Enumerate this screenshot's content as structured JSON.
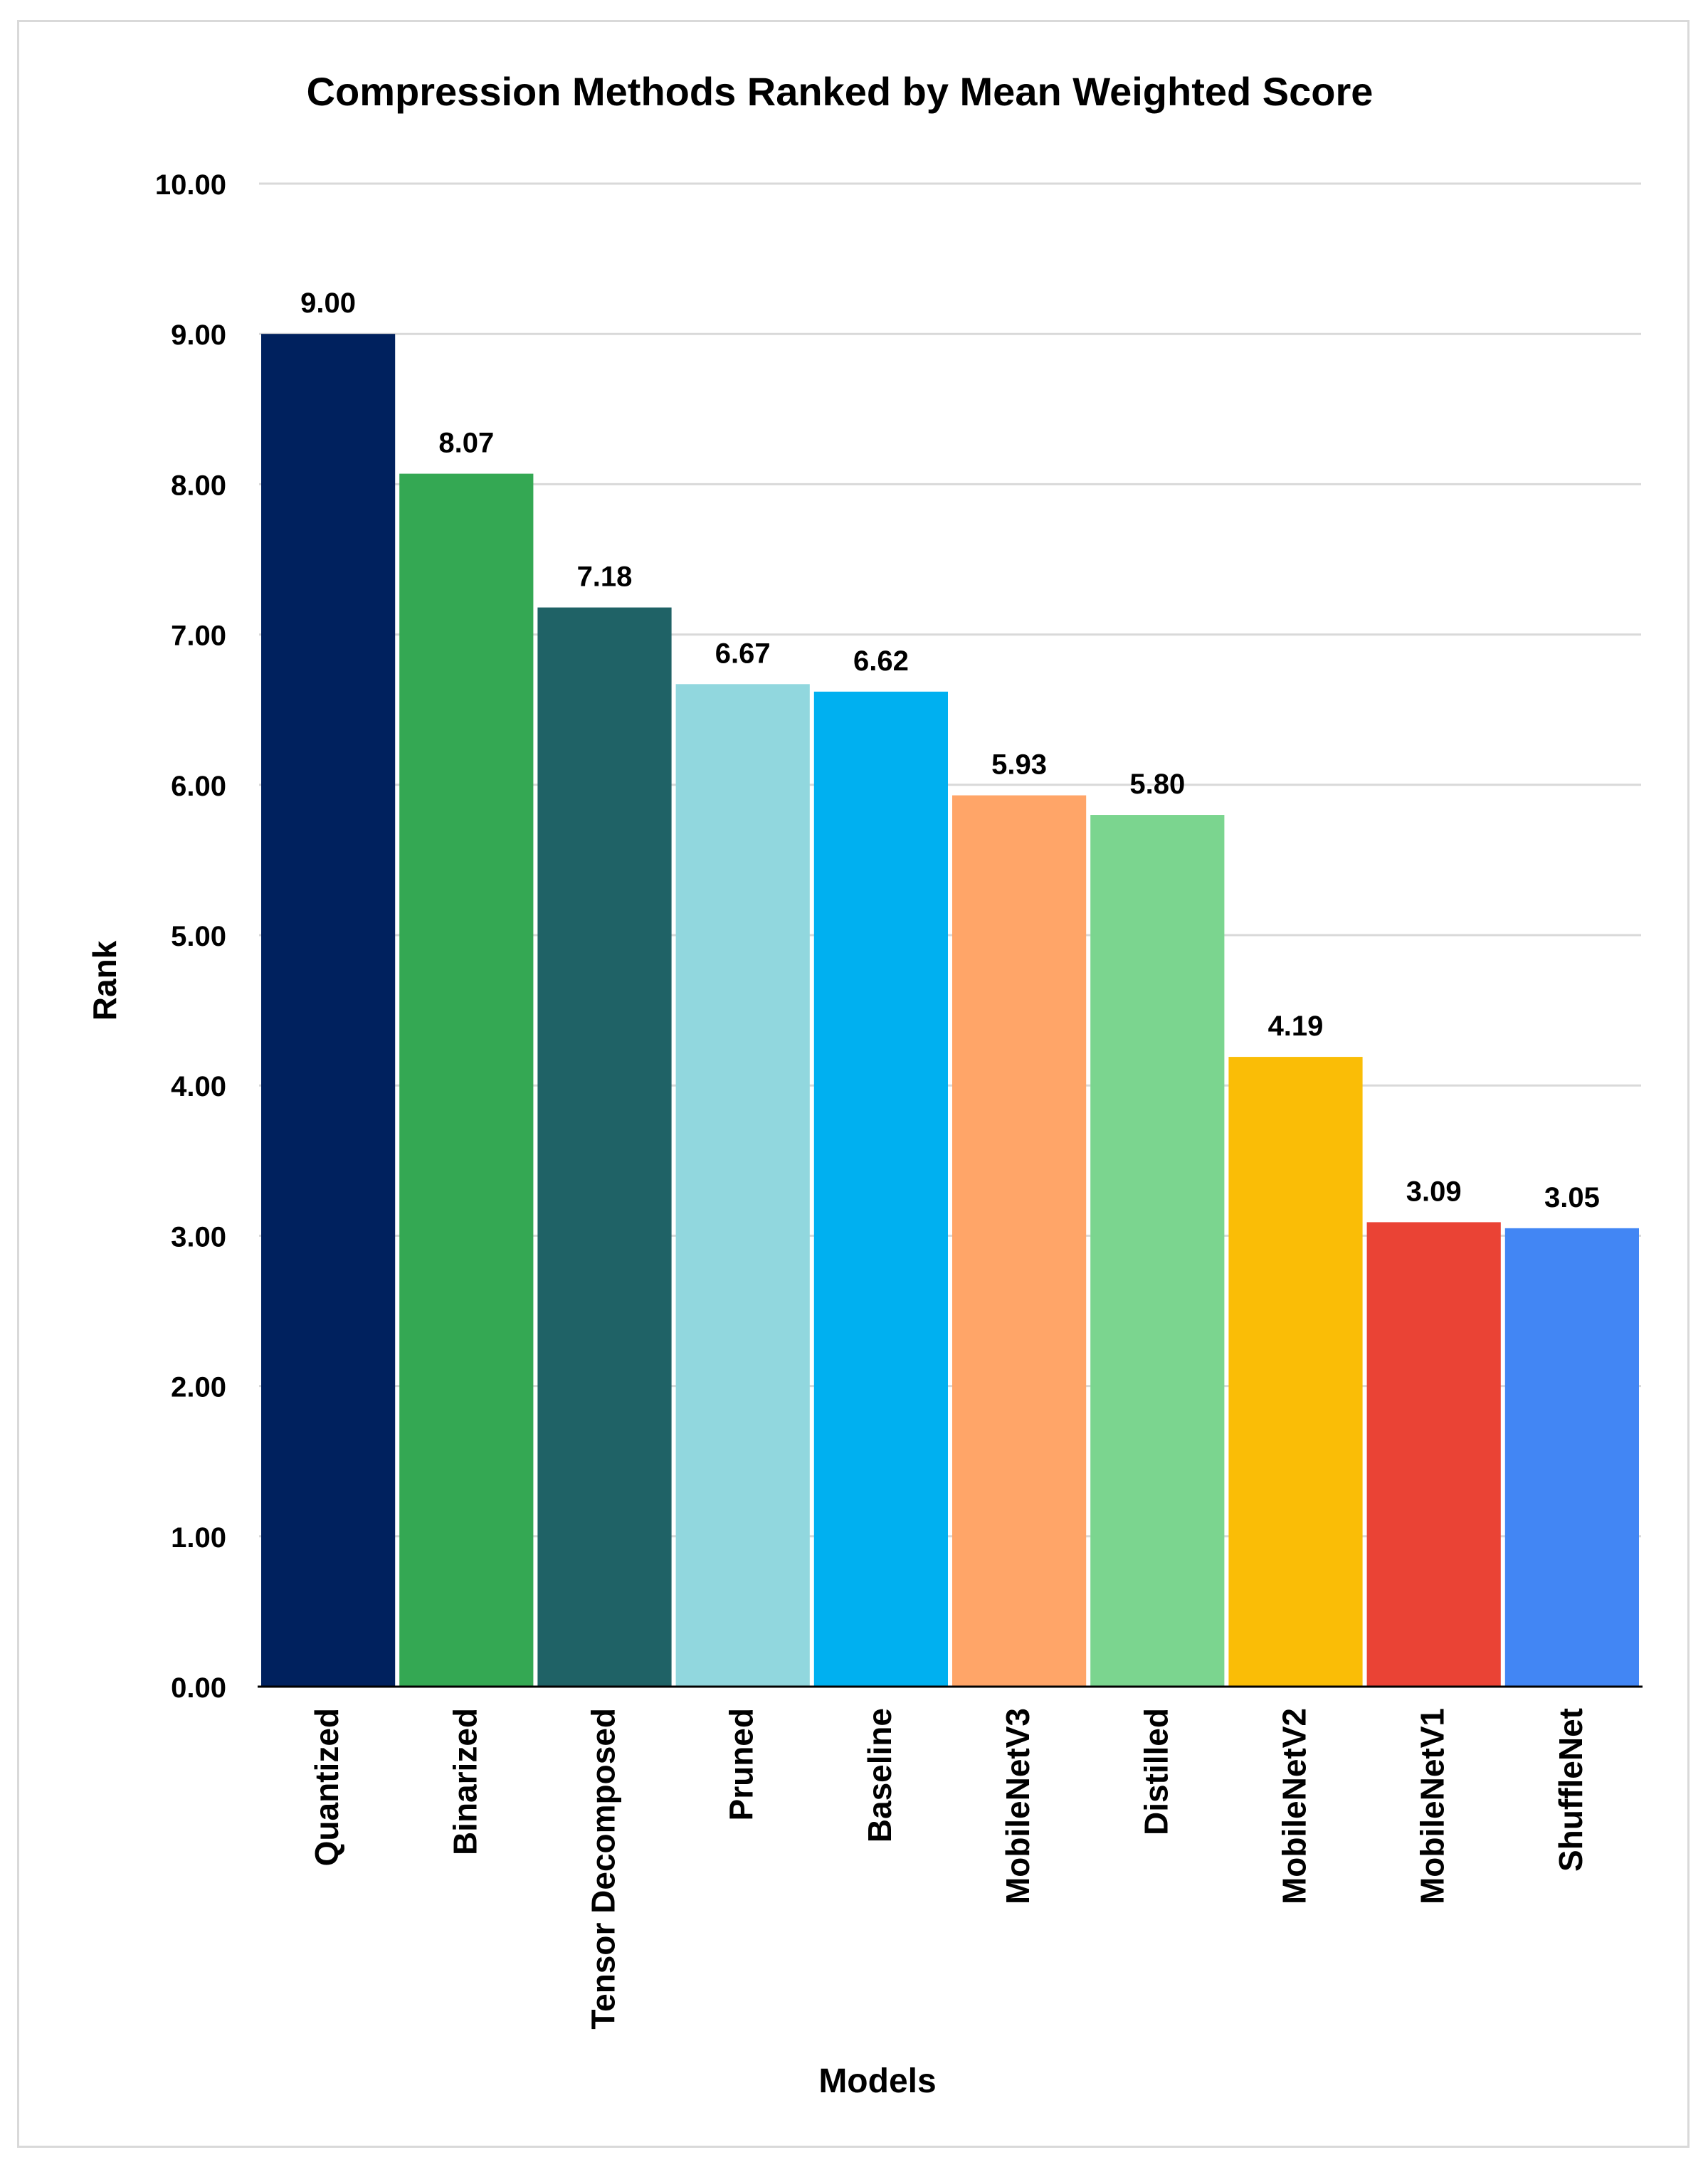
{
  "chart_data": {
    "type": "bar",
    "title": "Compression Methods Ranked by Mean Weighted Score",
    "xlabel": "Models",
    "ylabel": "Rank",
    "ylim": [
      0,
      10
    ],
    "ytick_step": 1,
    "ytick_labels": [
      "0.00",
      "1.00",
      "2.00",
      "3.00",
      "4.00",
      "5.00",
      "6.00",
      "7.00",
      "8.00",
      "9.00",
      "10.00"
    ],
    "grid": true,
    "legend": "none",
    "categories": [
      "Quantized",
      "Binarized",
      "Tensor Decomposed",
      "Pruned",
      "Baseline",
      "MobileNetV3",
      "Distilled",
      "MobileNetV2",
      "MobileNetV1",
      "ShuffleNet"
    ],
    "values": [
      9.0,
      8.07,
      7.18,
      6.67,
      6.62,
      5.93,
      5.8,
      4.19,
      3.09,
      3.05
    ],
    "value_labels": [
      "9.00",
      "8.07",
      "7.18",
      "6.67",
      "6.62",
      "5.93",
      "5.80",
      "4.19",
      "3.09",
      "3.05"
    ],
    "colors": [
      "#00215E",
      "#34A853",
      "#1F6266",
      "#91D7DE",
      "#00B0F0",
      "#FFA568",
      "#7BD58F",
      "#FABD06",
      "#EA4335",
      "#4286F4"
    ]
  }
}
